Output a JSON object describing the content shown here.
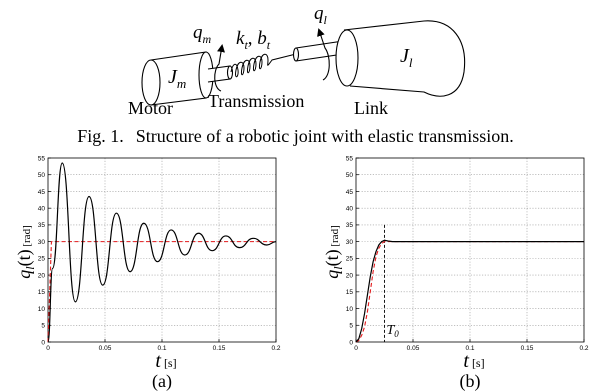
{
  "diagram": {
    "motor_var": "J",
    "motor_sub": "m",
    "link_var": "J",
    "link_sub": "l",
    "qm_var": "q",
    "qm_sub": "m",
    "ql_var": "q",
    "ql_sub": "l",
    "spring_k": "k",
    "spring_k_sub": "t",
    "spring_sep": ", ",
    "spring_b": "b",
    "spring_b_sub": "t",
    "motor_label": "Motor",
    "transmission_label": "Transmission",
    "link_label": "Link"
  },
  "caption": {
    "number": "Fig. 1.",
    "text": "Structure of a robotic joint with elastic transmission."
  },
  "chart_data": [
    {
      "type": "line",
      "sublabel": "(a)",
      "xlabel_var": "t",
      "xlabel_unit": "[s]",
      "ylabel_var": "q",
      "ylabel_sub": "l",
      "ylabel_arg": "(t)",
      "ylabel_unit": "[rad]",
      "xlim": [
        0,
        0.2
      ],
      "ylim": [
        0,
        55
      ],
      "xticks": [
        "0",
        "0.05",
        "0.1",
        "0.15",
        "0.2"
      ],
      "yticks": [
        "0",
        "5",
        "10",
        "15",
        "20",
        "25",
        "30",
        "35",
        "40",
        "45",
        "50",
        "55"
      ],
      "grid": true,
      "reference_color": "#e41a1c",
      "response_color": "#000000",
      "series": [
        {
          "style": "dashed",
          "x": [
            0,
            0.003,
            0.2
          ],
          "y": [
            0,
            30,
            30
          ]
        },
        {
          "style": "solid",
          "x": [
            0,
            0.004,
            0.0125,
            0.024,
            0.036,
            0.048,
            0.06,
            0.072,
            0.084,
            0.096,
            0.108,
            0.12,
            0.132,
            0.144,
            0.156,
            0.168,
            0.18,
            0.192,
            0.2
          ],
          "y": [
            0,
            22,
            53.5,
            12,
            43.5,
            17,
            38.5,
            21,
            35.5,
            24,
            33.5,
            26,
            32.5,
            27.3,
            31.7,
            28.2,
            31,
            29,
            30
          ]
        }
      ]
    },
    {
      "type": "line",
      "sublabel": "(b)",
      "xlabel_var": "t",
      "xlabel_unit": "[s]",
      "ylabel_var": "q",
      "ylabel_sub": "l",
      "ylabel_arg": "(t)",
      "ylabel_unit": "[rad]",
      "xlim": [
        0,
        0.2
      ],
      "ylim": [
        0,
        55
      ],
      "xticks": [
        "0",
        "0.05",
        "0.1",
        "0.15",
        "0.2"
      ],
      "yticks": [
        "0",
        "5",
        "10",
        "15",
        "20",
        "25",
        "30",
        "35",
        "40",
        "45",
        "50",
        "55"
      ],
      "grid": true,
      "reference_color": "#e41a1c",
      "response_color": "#000000",
      "annotation_var": "T",
      "annotation_sub": "0",
      "annotation_x": 0.025,
      "series": [
        {
          "style": "dashed",
          "x": [
            0,
            0.0025,
            0.005,
            0.0075,
            0.01,
            0.0125,
            0.015,
            0.0175,
            0.02,
            0.0225,
            0.025,
            0.2
          ],
          "y": [
            0,
            0.5,
            2,
            4.5,
            9,
            15,
            21,
            25.5,
            28,
            29.5,
            30,
            30
          ]
        },
        {
          "style": "solid",
          "x": [
            0,
            0.0025,
            0.005,
            0.0075,
            0.01,
            0.0125,
            0.015,
            0.0175,
            0.02,
            0.0225,
            0.025,
            0.028,
            0.032,
            0.2
          ],
          "y": [
            0,
            1,
            4,
            8.5,
            14,
            19.5,
            24,
            27,
            29,
            30,
            30.4,
            30.2,
            30,
            30
          ]
        }
      ]
    }
  ]
}
